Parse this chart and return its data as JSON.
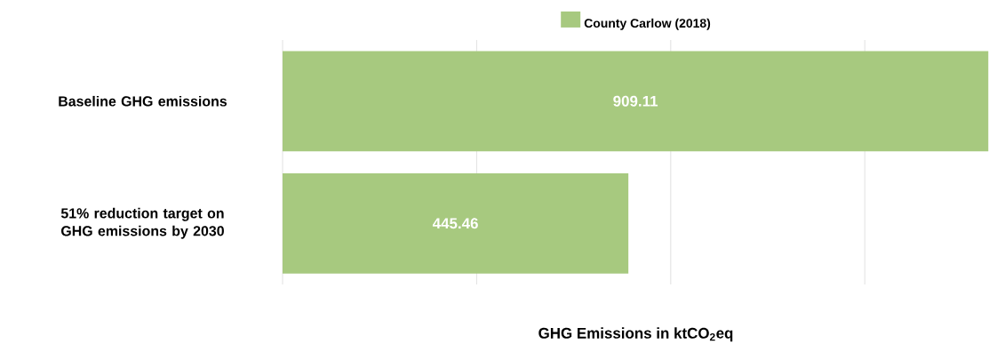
{
  "chart_data": {
    "type": "bar",
    "orientation": "horizontal",
    "xlabel": "GHG Emissions in ktCO$_{2}$eq",
    "categories": [
      "Baseline GHG emissions",
      "51% reduction target on GHG emissions by 2030"
    ],
    "series": [
      {
        "name": "County Carlow (2018)",
        "color": "#a7c97f",
        "values": [
          909.11,
          445.46
        ],
        "value_labels": [
          "909.11",
          "445.46"
        ]
      }
    ],
    "xlim": [
      0,
      910
    ],
    "xticks": [
      {
        "value": 0,
        "label": null
      },
      {
        "value": 250,
        "label": null
      },
      {
        "value": 500,
        "label": null
      },
      {
        "value": 750,
        "label": null
      }
    ],
    "grid": "x",
    "legend": "top",
    "tick_labels": "y",
    "data_labels": true
  }
}
